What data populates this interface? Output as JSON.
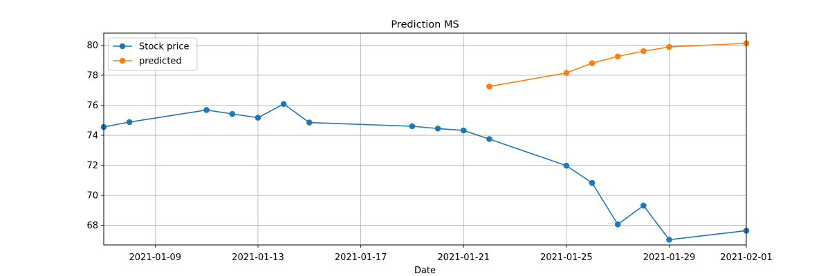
{
  "chart_data": {
    "type": "line",
    "title": "Prediction MS",
    "xlabel": "Date",
    "ylabel": "",
    "xlim": [
      "2021-01-07",
      "2021-02-01"
    ],
    "ylim": [
      66.7,
      80.8
    ],
    "x_ticks": [
      "2021-01-09",
      "2021-01-13",
      "2021-01-17",
      "2021-01-21",
      "2021-01-25",
      "2021-01-29",
      "2021-02-01"
    ],
    "y_ticks": [
      68,
      70,
      72,
      74,
      76,
      78,
      80
    ],
    "grid": true,
    "legend": "top-left",
    "series": [
      {
        "name": "Stock price",
        "color": "#1f77b4",
        "marker": "circle",
        "points": [
          {
            "x": "2021-01-07",
            "y": 74.55
          },
          {
            "x": "2021-01-08",
            "y": 74.88
          },
          {
            "x": "2021-01-11",
            "y": 75.68
          },
          {
            "x": "2021-01-12",
            "y": 75.42
          },
          {
            "x": "2021-01-13",
            "y": 75.17
          },
          {
            "x": "2021-01-14",
            "y": 76.08
          },
          {
            "x": "2021-01-15",
            "y": 74.85
          },
          {
            "x": "2021-01-19",
            "y": 74.6
          },
          {
            "x": "2021-01-20",
            "y": 74.45
          },
          {
            "x": "2021-01-21",
            "y": 74.32
          },
          {
            "x": "2021-01-22",
            "y": 73.75
          },
          {
            "x": "2021-01-25",
            "y": 71.98
          },
          {
            "x": "2021-01-26",
            "y": 70.83
          },
          {
            "x": "2021-01-27",
            "y": 68.07
          },
          {
            "x": "2021-01-28",
            "y": 69.32
          },
          {
            "x": "2021-01-29",
            "y": 67.05
          },
          {
            "x": "2021-02-01",
            "y": 67.65
          }
        ]
      },
      {
        "name": "predicted",
        "color": "#ff7f0e",
        "marker": "circle",
        "points": [
          {
            "x": "2021-01-22",
            "y": 77.25
          },
          {
            "x": "2021-01-25",
            "y": 78.15
          },
          {
            "x": "2021-01-26",
            "y": 78.8
          },
          {
            "x": "2021-01-27",
            "y": 79.25
          },
          {
            "x": "2021-01-28",
            "y": 79.6
          },
          {
            "x": "2021-01-29",
            "y": 79.88
          },
          {
            "x": "2021-02-01",
            "y": 80.12
          }
        ]
      }
    ]
  }
}
